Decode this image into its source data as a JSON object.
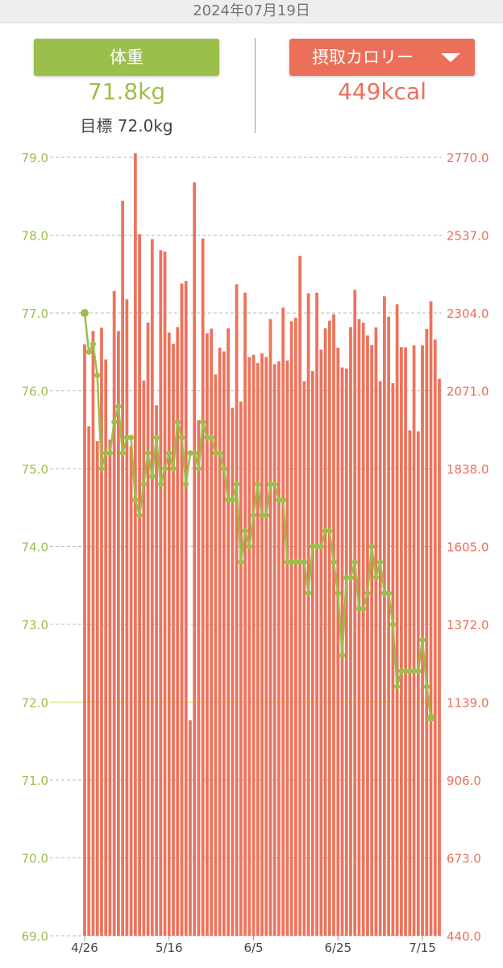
{
  "header": {
    "date": "2024年07月19日"
  },
  "summary": {
    "weight_button": "体重",
    "weight_value": "71.8kg",
    "goal_label": "目標 72.0kg",
    "calorie_button": "摂取カロリー",
    "calorie_value": "449kcal",
    "dropdown_icon": "triangle-down-icon"
  },
  "colors": {
    "weight": "#9bbf4b",
    "calorie": "#ec6f59",
    "bar": "#ec735c",
    "grid": "#bbbbbb",
    "goal_line": "#d9e68a"
  },
  "chart_data": {
    "type": "bar+line",
    "x_start": "2024-04-26",
    "x_end": "2024-07-19",
    "x_ticks": [
      "4/26",
      "5/16",
      "6/5",
      "6/25",
      "7/15"
    ],
    "left_axis": {
      "ticks": [
        "79.0",
        "78.0",
        "77.0",
        "76.0",
        "75.0",
        "74.0",
        "73.0",
        "72.0",
        "71.0",
        "70.0",
        "69.0"
      ],
      "min": 69,
      "max": 79
    },
    "right_axis": {
      "ticks": [
        "2770.0",
        "2537.0",
        "2304.0",
        "2071.0",
        "1838.0",
        "1605.0",
        "1372.0",
        "1139.0",
        "906.0",
        "673.0",
        "440.0"
      ],
      "min": 440,
      "max": 2770
    },
    "goal_weight": 72.0,
    "weight": [
      77.0,
      76.5,
      76.6,
      76.2,
      75.0,
      75.2,
      75.2,
      75.6,
      75.8,
      75.2,
      75.4,
      75.4,
      74.6,
      74.4,
      74.8,
      75.2,
      74.9,
      75.4,
      74.8,
      75.0,
      75.2,
      75.0,
      75.6,
      75.4,
      74.8,
      75.2,
      75.2,
      75.0,
      75.6,
      75.4,
      75.4,
      75.2,
      75.2,
      75.0,
      74.6,
      74.6,
      74.8,
      73.8,
      74.2,
      74.0,
      74.4,
      74.8,
      74.4,
      74.4,
      74.8,
      74.8,
      74.6,
      74.6,
      73.8,
      73.8,
      73.8,
      73.8,
      73.8,
      73.4,
      74.0,
      74.0,
      74.0,
      74.2,
      74.2,
      73.8,
      73.4,
      72.6,
      73.6,
      73.6,
      73.8,
      73.2,
      73.2,
      73.4,
      74.0,
      73.6,
      73.8,
      73.4,
      73.4,
      73.0,
      72.2,
      72.4,
      72.4,
      72.4,
      72.4,
      72.4,
      72.8,
      72.2,
      71.8
    ],
    "calories": [
      2210,
      1965,
      2250,
      1920,
      2260,
      2165,
      1925,
      2370,
      2250,
      2640,
      2345,
      1905,
      2782,
      2540,
      2102,
      2275,
      2525,
      2028,
      2492,
      2488,
      2245,
      2212,
      2262,
      2392,
      2400,
      1085,
      2695,
      1983,
      2527,
      2243,
      2257,
      2120,
      2200,
      2189,
      2258,
      2020,
      2390,
      2039,
      2365,
      2172,
      2179,
      2154,
      2183,
      2172,
      2286,
      2151,
      2159,
      2320,
      2162,
      2279,
      2290,
      2475,
      2100,
      2363,
      2130,
      2365,
      2194,
      2258,
      2281,
      2300,
      2200,
      2141,
      2138,
      2262,
      2373,
      2286,
      2275,
      2237,
      2208,
      2261,
      2100,
      2354,
      2293,
      2094,
      2330,
      2202,
      2201,
      1953,
      2207,
      1950,
      2207,
      2256,
      2339,
      2225,
      2107
    ]
  }
}
